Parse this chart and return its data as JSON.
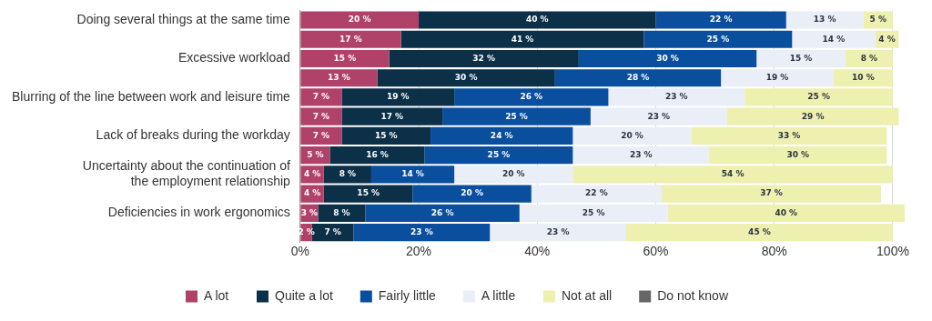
{
  "chart_data": {
    "type": "bar",
    "orientation": "horizontal",
    "stacked": true,
    "categories": [
      "Doing several things at the same time",
      null,
      "Excessive workload",
      null,
      "Blurring of the line between work and leisure time",
      null,
      "Lack of breaks during the workday",
      null,
      "Uncertainty about the continuation of\nthe employment relationship",
      null,
      "Deficiencies in work ergonomics",
      null
    ],
    "series": [
      {
        "name": "A lot",
        "color": "#b0426a",
        "values": [
          20,
          17,
          15,
          13,
          7,
          7,
          7,
          5,
          4,
          4,
          3,
          2
        ],
        "value_labels": [
          "20 %",
          "17 %",
          "15 %",
          "13 %",
          "7 %",
          "7 %",
          "7 %",
          "5 %",
          "4 %",
          "4 %",
          "3 %",
          "2 %"
        ]
      },
      {
        "name": "Quite a lot",
        "color": "#0d3049",
        "values": [
          40,
          41,
          32,
          30,
          19,
          17,
          15,
          16,
          8,
          15,
          8,
          7
        ],
        "value_labels": [
          "40 %",
          "41 %",
          "32 %",
          "30 %",
          "19 %",
          "17 %",
          "15 %",
          "16 %",
          "8 %",
          "15 %",
          "8 %",
          "7 %"
        ]
      },
      {
        "name": "Fairly little",
        "color": "#0a4f9e",
        "values": [
          22,
          25,
          30,
          28,
          26,
          25,
          24,
          25,
          14,
          20,
          26,
          23
        ],
        "value_labels": [
          "22 %",
          "25 %",
          "30 %",
          "28 %",
          "26 %",
          "25 %",
          "24 %",
          "25 %",
          "14 %",
          "20 %",
          "26 %",
          "23 %"
        ]
      },
      {
        "name": "A little",
        "color": "#e9eef7",
        "values": [
          13,
          14,
          15,
          19,
          23,
          23,
          20,
          23,
          20,
          22,
          25,
          23
        ],
        "value_labels": [
          "13 %",
          "14 %",
          "15 %",
          "19 %",
          "23 %",
          "23 %",
          "20 %",
          "23 %",
          "20 %",
          "22 %",
          "25 %",
          "23 %"
        ]
      },
      {
        "name": "Not at all",
        "color": "#eef0b0",
        "values": [
          5,
          4,
          8,
          10,
          25,
          29,
          33,
          30,
          54,
          37,
          40,
          45
        ],
        "value_labels": [
          "5 %",
          "4 %",
          "8 %",
          "10 %",
          "25 %",
          "29 %",
          "33 %",
          "30 %",
          "54 %",
          "37 %",
          "40 %",
          "45 %"
        ]
      },
      {
        "name": "Do not know",
        "color": "#666666",
        "values": [
          0,
          0,
          0,
          0,
          0,
          0,
          0,
          0,
          0,
          0,
          0,
          0
        ]
      }
    ],
    "xlim": [
      0,
      102
    ],
    "xticks": [
      {
        "value": 0,
        "label": "0%"
      },
      {
        "value": 20,
        "label": "20%"
      },
      {
        "value": 40,
        "label": "40%"
      },
      {
        "value": 60,
        "label": "60%"
      },
      {
        "value": 80,
        "label": "80%"
      },
      {
        "value": 100,
        "label": "100%"
      }
    ],
    "grid": "x",
    "legend": "bottom"
  }
}
